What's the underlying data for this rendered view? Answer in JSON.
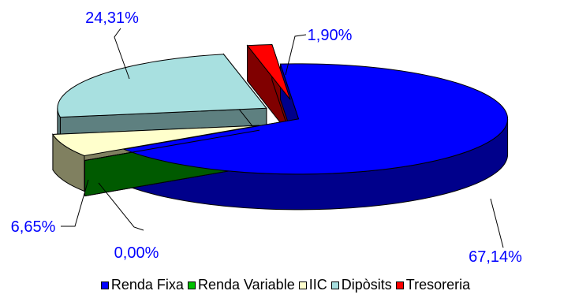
{
  "chart_data": {
    "type": "pie",
    "style": "3d-exploded",
    "title": "",
    "legend_position": "bottom",
    "slices": [
      {
        "name": "Renda Fixa",
        "value": 67.14,
        "label": "67,14%",
        "color": "#0000ff",
        "side": "#00008b"
      },
      {
        "name": "Renda Variable",
        "value": 0.0,
        "label": "0,00%",
        "color": "#00a000",
        "side": "#005a00"
      },
      {
        "name": "IIC",
        "value": 6.65,
        "label": "6,65%",
        "color": "#ffffcc",
        "side": "#808060"
      },
      {
        "name": "Dipòsits",
        "value": 24.31,
        "label": "24,31%",
        "color": "#a8e0e0",
        "side": "#5e8080"
      },
      {
        "name": "Tresoreria",
        "value": 1.9,
        "label": "1,90%",
        "color": "#ff0000",
        "side": "#800000"
      }
    ]
  }
}
